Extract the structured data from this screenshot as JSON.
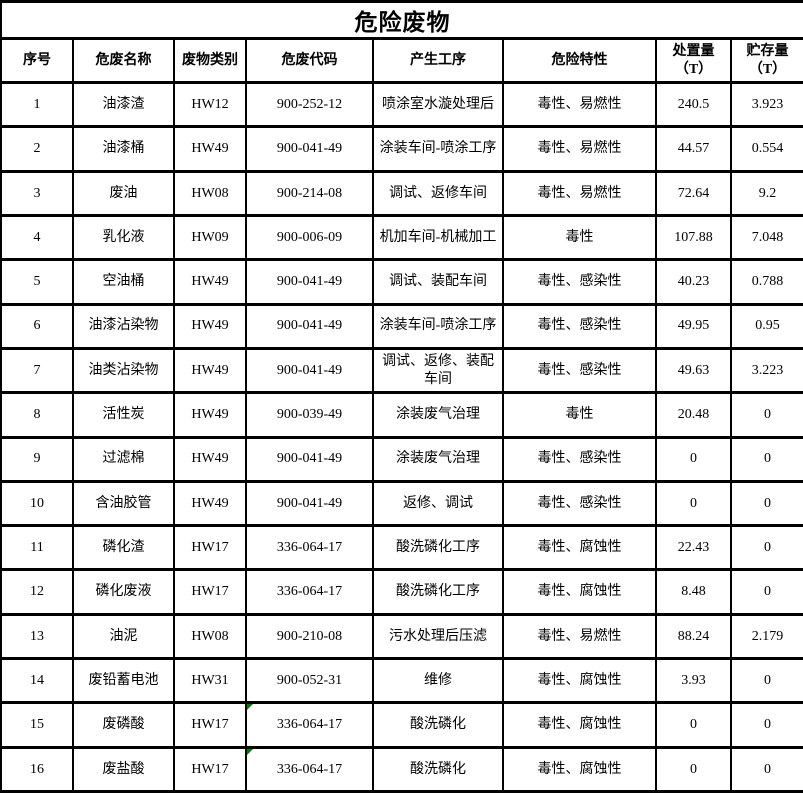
{
  "title": "危险废物",
  "colors": {
    "border": "#000000",
    "text": "#000000",
    "background": "#ffffff",
    "cell_corner_marker": "#008000"
  },
  "table": {
    "headers": {
      "seq": "序号",
      "name": "危废名称",
      "category": "废物类别",
      "code": "危废代码",
      "process": "产生工序",
      "hazard": "危险特性",
      "disposal": "处置量\n（T）",
      "storage": "贮存量\n（T）"
    },
    "rows": [
      {
        "seq": "1",
        "name": "油漆渣",
        "category": "HW12",
        "code": "900-252-12",
        "process": "喷涂室水漩处理后",
        "hazard": "毒性、易燃性",
        "disposal": "240.5",
        "storage": "3.923",
        "code_marker": false
      },
      {
        "seq": "2",
        "name": "油漆桶",
        "category": "HW49",
        "code": "900-041-49",
        "process": "涂装车间-喷涂工序",
        "hazard": "毒性、易燃性",
        "disposal": "44.57",
        "storage": "0.554",
        "code_marker": false
      },
      {
        "seq": "3",
        "name": "废油",
        "category": "HW08",
        "code": "900-214-08",
        "process": "调试、返修车间",
        "hazard": "毒性、易燃性",
        "disposal": "72.64",
        "storage": "9.2",
        "code_marker": false
      },
      {
        "seq": "4",
        "name": "乳化液",
        "category": "HW09",
        "code": "900-006-09",
        "process": "机加车间-机械加工",
        "hazard": "毒性",
        "disposal": "107.88",
        "storage": "7.048",
        "code_marker": false
      },
      {
        "seq": "5",
        "name": "空油桶",
        "category": "HW49",
        "code": "900-041-49",
        "process": "调试、装配车间",
        "hazard": "毒性、感染性",
        "disposal": "40.23",
        "storage": "0.788",
        "code_marker": false
      },
      {
        "seq": "6",
        "name": "油漆沾染物",
        "category": "HW49",
        "code": "900-041-49",
        "process": "涂装车间-喷涂工序",
        "hazard": "毒性、感染性",
        "disposal": "49.95",
        "storage": "0.95",
        "code_marker": false
      },
      {
        "seq": "7",
        "name": "油类沾染物",
        "category": "HW49",
        "code": "900-041-49",
        "process": "调试、返修、装配车间",
        "hazard": "毒性、感染性",
        "disposal": "49.63",
        "storage": "3.223",
        "code_marker": false
      },
      {
        "seq": "8",
        "name": "活性炭",
        "category": "HW49",
        "code": "900-039-49",
        "process": "涂装废气治理",
        "hazard": "毒性",
        "disposal": "20.48",
        "storage": "0",
        "code_marker": false
      },
      {
        "seq": "9",
        "name": "过滤棉",
        "category": "HW49",
        "code": "900-041-49",
        "process": "涂装废气治理",
        "hazard": "毒性、感染性",
        "disposal": "0",
        "storage": "0",
        "code_marker": false
      },
      {
        "seq": "10",
        "name": "含油胶管",
        "category": "HW49",
        "code": "900-041-49",
        "process": "返修、调试",
        "hazard": "毒性、感染性",
        "disposal": "0",
        "storage": "0",
        "code_marker": false
      },
      {
        "seq": "11",
        "name": "磷化渣",
        "category": "HW17",
        "code": "336-064-17",
        "process": "酸洗磷化工序",
        "hazard": "毒性、腐蚀性",
        "disposal": "22.43",
        "storage": "0",
        "code_marker": false
      },
      {
        "seq": "12",
        "name": "磷化废液",
        "category": "HW17",
        "code": "336-064-17",
        "process": "酸洗磷化工序",
        "hazard": "毒性、腐蚀性",
        "disposal": "8.48",
        "storage": "0",
        "code_marker": false
      },
      {
        "seq": "13",
        "name": "油泥",
        "category": "HW08",
        "code": "900-210-08",
        "process": "污水处理后压滤",
        "hazard": "毒性、易燃性",
        "disposal": "88.24",
        "storage": "2.179",
        "code_marker": false
      },
      {
        "seq": "14",
        "name": "废铅蓄电池",
        "category": "HW31",
        "code": "900-052-31",
        "process": "维修",
        "hazard": "毒性、腐蚀性",
        "disposal": "3.93",
        "storage": "0",
        "code_marker": false
      },
      {
        "seq": "15",
        "name": "废磷酸",
        "category": "HW17",
        "code": "336-064-17",
        "process": "酸洗磷化",
        "hazard": "毒性、腐蚀性",
        "disposal": "0",
        "storage": "0",
        "code_marker": true
      },
      {
        "seq": "16",
        "name": "废盐酸",
        "category": "HW17",
        "code": "336-064-17",
        "process": "酸洗磷化",
        "hazard": "毒性、腐蚀性",
        "disposal": "0",
        "storage": "0",
        "code_marker": true
      }
    ]
  }
}
